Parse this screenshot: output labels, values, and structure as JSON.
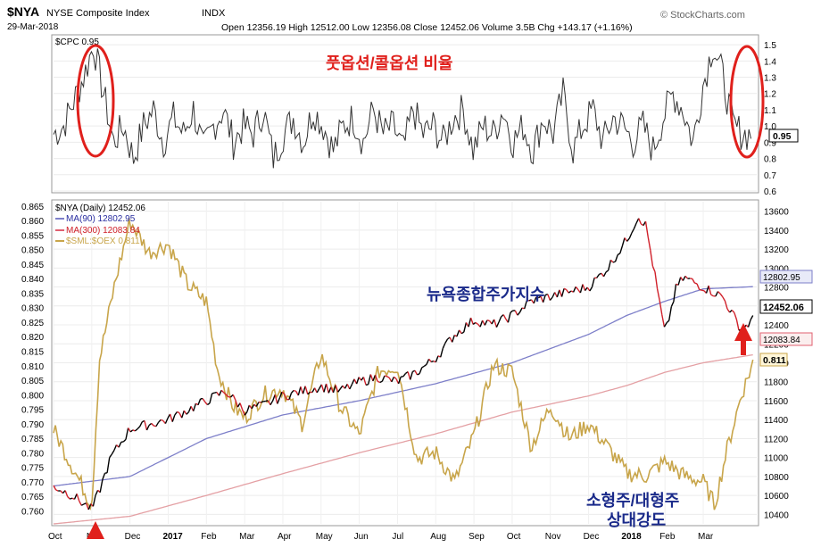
{
  "header": {
    "symbol": "$NYA",
    "name": "NYSE Composite Index",
    "exchange": "INDX",
    "date": "29-Mar-2018",
    "quote": "Open 12356.19  High 12512.00  Low 12356.08  Close 12452.06  Volume 3.5B  Chg +143.17 (+1.16%)",
    "brand": "© StockCharts.com"
  },
  "annotations": {
    "put_call": "풋옵션/콜옵션 비율",
    "nyse": "뉴욕종합주가지수",
    "small_large_1": "소형주/대형주",
    "small_large_2": "상대강도"
  },
  "colors": {
    "price_up": "#000000",
    "price_down": "#d0202a",
    "ma90": "#7d7fc9",
    "ma300": "#e4a0a4",
    "ratio": "#c8a54a",
    "annotation_red": "#e0201c",
    "annotation_blue": "#1a2a8a"
  },
  "chart_data": [
    {
      "type": "line",
      "title": "$CPC 0.95",
      "legend": [
        {
          "name": "$CPC 0.95"
        }
      ],
      "last_value_label": "0.95",
      "ylim": [
        0.6,
        1.55
      ],
      "y_ticks": [
        "0.6",
        "0.7",
        "0.8",
        "0.9",
        "1.0",
        "1.1",
        "1.2",
        "1.3",
        "1.4",
        "1.5"
      ],
      "series": [
        {
          "name": "$CPC",
          "approx_values_weekly": [
            0.95,
            1.0,
            1.15,
            1.3,
            1.5,
            1.2,
            0.9,
            1.0,
            0.8,
            1.0,
            1.1,
            0.9,
            1.05,
            0.95,
            1.1,
            0.85,
            1.0,
            1.1,
            0.9,
            1.0,
            0.95,
            1.1,
            0.8,
            0.95,
            1.05,
            0.9,
            1.1,
            1.0,
            0.85,
            1.0,
            1.05,
            0.9,
            1.1,
            0.95,
            1.0,
            0.85,
            1.1,
            0.95,
            1.0,
            0.9,
            1.05,
            1.1,
            0.85,
            1.0,
            0.95,
            1.1,
            0.9,
            1.0,
            0.85,
            1.05,
            0.95,
            1.2,
            0.85,
            1.0,
            1.1,
            0.9,
            1.05,
            1.0,
            0.9,
            1.0,
            0.85,
            1.05,
            1.2,
            1.1,
            0.9,
            1.25,
            1.5,
            1.3,
            1.0,
            0.95
          ]
        }
      ]
    },
    {
      "type": "line",
      "title": "$NYA (Daily) 12452.06",
      "legend": [
        {
          "name": "$NYA (Daily) 12452.06"
        },
        {
          "name": "MA(90) 12802.95"
        },
        {
          "name": "MA(300) 12083.84"
        },
        {
          "name": "$SML:$OEX 0.811"
        }
      ],
      "x_tick_labels": [
        "Oct",
        "Nov",
        "Dec",
        "2017",
        "Feb",
        "Mar",
        "Apr",
        "May",
        "Jun",
        "Jul",
        "Aug",
        "Sep",
        "Oct",
        "Nov",
        "Dec",
        "2018",
        "Feb",
        "Mar"
      ],
      "right_axis": {
        "ylim": [
          10300,
          13700
        ],
        "ticks": [
          "10400",
          "10600",
          "10800",
          "11000",
          "11200",
          "11400",
          "11600",
          "11800",
          "12000",
          "12200",
          "12400",
          "12600",
          "12800",
          "13000",
          "13200",
          "13400",
          "13600"
        ]
      },
      "left_axis": {
        "ylim": [
          0.7555,
          0.8665
        ],
        "ticks": [
          "0.760",
          "0.765",
          "0.770",
          "0.775",
          "0.780",
          "0.785",
          "0.790",
          "0.795",
          "0.800",
          "0.805",
          "0.810",
          "0.815",
          "0.820",
          "0.825",
          "0.830",
          "0.835",
          "0.840",
          "0.845",
          "0.850",
          "0.855",
          "0.860",
          "0.865"
        ]
      },
      "value_labels": {
        "nya": "12452.06",
        "ma90": "12802.95",
        "ma300": "12083.84",
        "ratio": "0.811"
      },
      "series": [
        {
          "name": "$NYA",
          "axis": "right",
          "approx_x_months": [
            0,
            0.5,
            1,
            1.2,
            1.5,
            2,
            2.5,
            3,
            3.5,
            4,
            4.5,
            5,
            5.5,
            6,
            6.5,
            7,
            7.5,
            8,
            8.5,
            9,
            9.5,
            10,
            10.5,
            11,
            11.5,
            12,
            12.5,
            13,
            13.5,
            14,
            14.5,
            15,
            15.3,
            15.5,
            15.7,
            16,
            16.3,
            16.5,
            17,
            17.5,
            18,
            18.3
          ],
          "values": [
            10700,
            10600,
            10450,
            10650,
            11000,
            11300,
            11350,
            11400,
            11500,
            11600,
            11700,
            11500,
            11550,
            11650,
            11700,
            11750,
            11700,
            11800,
            11850,
            11800,
            11900,
            12050,
            12300,
            12450,
            12400,
            12500,
            12650,
            12700,
            12750,
            12800,
            13000,
            13300,
            13550,
            13450,
            13000,
            12300,
            12800,
            12900,
            12800,
            12700,
            12350,
            12452
          ]
        },
        {
          "name": "MA(90)",
          "axis": "right",
          "approx_x_months": [
            0,
            2,
            4,
            6,
            8,
            10,
            12,
            14,
            15,
            16,
            17,
            18.3
          ],
          "values": [
            10700,
            10800,
            11200,
            11450,
            11600,
            11780,
            12000,
            12300,
            12500,
            12650,
            12780,
            12803
          ]
        },
        {
          "name": "MA(300)",
          "axis": "right",
          "approx_x_months": [
            0,
            2,
            4,
            6,
            8,
            10,
            12,
            14,
            15,
            16,
            17,
            18.3
          ],
          "values": [
            10300,
            10380,
            10600,
            10830,
            11050,
            11250,
            11480,
            11650,
            11760,
            11900,
            12000,
            12084
          ]
        },
        {
          "name": "$SML:$OEX",
          "axis": "left",
          "approx_x_months": [
            0,
            0.5,
            1,
            1.2,
            1.6,
            2,
            2.5,
            3,
            3.5,
            4,
            4.3,
            4.7,
            5,
            5.5,
            6,
            6.5,
            7,
            7.5,
            8,
            8.5,
            9,
            9.5,
            10,
            10.5,
            11,
            11.5,
            12,
            12.5,
            13,
            13.5,
            14,
            14.5,
            15,
            15.5,
            16,
            16.5,
            17,
            17.3,
            17.6,
            18,
            18.3
          ],
          "values": [
            0.788,
            0.775,
            0.762,
            0.812,
            0.838,
            0.86,
            0.849,
            0.852,
            0.838,
            0.832,
            0.808,
            0.796,
            0.792,
            0.8,
            0.802,
            0.79,
            0.814,
            0.796,
            0.786,
            0.808,
            0.81,
            0.778,
            0.78,
            0.77,
            0.786,
            0.81,
            0.808,
            0.782,
            0.796,
            0.785,
            0.79,
            0.782,
            0.773,
            0.772,
            0.777,
            0.772,
            0.77,
            0.762,
            0.78,
            0.8,
            0.811
          ]
        }
      ]
    }
  ]
}
